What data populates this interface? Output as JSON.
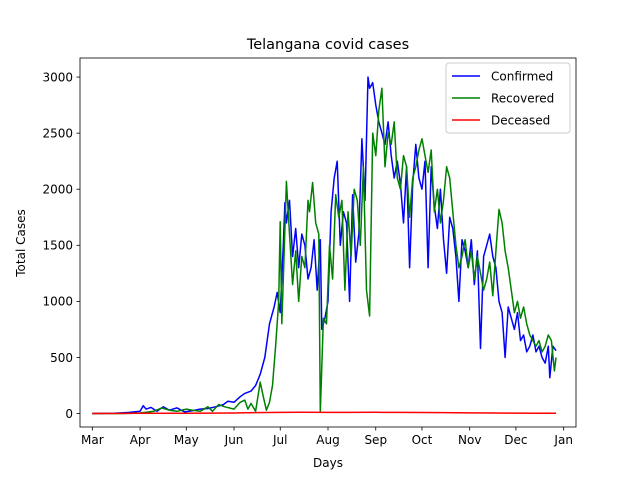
{
  "chart_data": {
    "type": "line",
    "title": "Telangana covid cases",
    "xlabel": "Days",
    "ylabel": "Total Cases",
    "x_ticks": [
      "Mar",
      "Apr",
      "May",
      "Jun",
      "Jul",
      "Aug",
      "Sep",
      "Oct",
      "Nov",
      "Dec",
      "Jan"
    ],
    "x_tick_dates": [
      "2020-03-01",
      "2020-04-01",
      "2020-05-01",
      "2020-06-01",
      "2020-07-01",
      "2020-08-01",
      "2020-09-01",
      "2020-10-01",
      "2020-11-01",
      "2020-12-01",
      "2021-01-01"
    ],
    "x_range": [
      "2020-02-22",
      "2021-01-09"
    ],
    "y_ticks": [
      0,
      500,
      1000,
      1500,
      2000,
      2500,
      3000
    ],
    "ylim": [
      -120,
      3170
    ],
    "grid": false,
    "legend_position": "top-right",
    "series": [
      {
        "name": "Confirmed",
        "color": "#0000ff",
        "points": [
          [
            "2020-03-01",
            0
          ],
          [
            "2020-03-15",
            2
          ],
          [
            "2020-03-25",
            10
          ],
          [
            "2020-04-01",
            20
          ],
          [
            "2020-04-03",
            70
          ],
          [
            "2020-04-05",
            40
          ],
          [
            "2020-04-08",
            55
          ],
          [
            "2020-04-12",
            20
          ],
          [
            "2020-04-16",
            60
          ],
          [
            "2020-04-20",
            30
          ],
          [
            "2020-04-25",
            50
          ],
          [
            "2020-04-30",
            15
          ],
          [
            "2020-05-05",
            25
          ],
          [
            "2020-05-10",
            40
          ],
          [
            "2020-05-15",
            45
          ],
          [
            "2020-05-20",
            60
          ],
          [
            "2020-05-25",
            80
          ],
          [
            "2020-05-28",
            110
          ],
          [
            "2020-06-01",
            100
          ],
          [
            "2020-06-05",
            150
          ],
          [
            "2020-06-08",
            180
          ],
          [
            "2020-06-12",
            200
          ],
          [
            "2020-06-15",
            250
          ],
          [
            "2020-06-18",
            350
          ],
          [
            "2020-06-21",
            500
          ],
          [
            "2020-06-24",
            800
          ],
          [
            "2020-06-27",
            950
          ],
          [
            "2020-06-29",
            1080
          ],
          [
            "2020-07-01",
            900
          ],
          [
            "2020-07-03",
            1500
          ],
          [
            "2020-07-04",
            1880
          ],
          [
            "2020-07-05",
            1700
          ],
          [
            "2020-07-07",
            1900
          ],
          [
            "2020-07-09",
            1400
          ],
          [
            "2020-07-11",
            1650
          ],
          [
            "2020-07-13",
            1300
          ],
          [
            "2020-07-15",
            1600
          ],
          [
            "2020-07-17",
            1500
          ],
          [
            "2020-07-19",
            1200
          ],
          [
            "2020-07-21",
            1300
          ],
          [
            "2020-07-23",
            1550
          ],
          [
            "2020-07-25",
            1100
          ],
          [
            "2020-07-27",
            1550
          ],
          [
            "2020-07-28",
            750
          ],
          [
            "2020-07-30",
            850
          ],
          [
            "2020-08-01",
            1000
          ],
          [
            "2020-08-03",
            1800
          ],
          [
            "2020-08-05",
            2100
          ],
          [
            "2020-08-07",
            2250
          ],
          [
            "2020-08-09",
            1500
          ],
          [
            "2020-08-11",
            1800
          ],
          [
            "2020-08-13",
            1700
          ],
          [
            "2020-08-15",
            1000
          ],
          [
            "2020-08-17",
            1950
          ],
          [
            "2020-08-19",
            1350
          ],
          [
            "2020-08-21",
            1600
          ],
          [
            "2020-08-23",
            2450
          ],
          [
            "2020-08-25",
            1900
          ],
          [
            "2020-08-27",
            3000
          ],
          [
            "2020-08-28",
            2900
          ],
          [
            "2020-08-30",
            2950
          ],
          [
            "2020-09-01",
            2750
          ],
          [
            "2020-09-03",
            2600
          ],
          [
            "2020-09-05",
            2500
          ],
          [
            "2020-09-07",
            2400
          ],
          [
            "2020-09-09",
            2600
          ],
          [
            "2020-09-11",
            2300
          ],
          [
            "2020-09-13",
            2100
          ],
          [
            "2020-09-15",
            2250
          ],
          [
            "2020-09-17",
            2050
          ],
          [
            "2020-09-19",
            1700
          ],
          [
            "2020-09-21",
            2200
          ],
          [
            "2020-09-23",
            1300
          ],
          [
            "2020-09-25",
            2050
          ],
          [
            "2020-09-27",
            2400
          ],
          [
            "2020-09-29",
            2100
          ],
          [
            "2020-10-01",
            2000
          ],
          [
            "2020-10-03",
            2250
          ],
          [
            "2020-10-05",
            1300
          ],
          [
            "2020-10-07",
            2200
          ],
          [
            "2020-10-09",
            1850
          ],
          [
            "2020-10-11",
            1650
          ],
          [
            "2020-10-13",
            2000
          ],
          [
            "2020-10-15",
            1550
          ],
          [
            "2020-10-17",
            1250
          ],
          [
            "2020-10-19",
            1750
          ],
          [
            "2020-10-21",
            1650
          ],
          [
            "2020-10-23",
            1400
          ],
          [
            "2020-10-25",
            1000
          ],
          [
            "2020-10-27",
            1550
          ],
          [
            "2020-10-29",
            1450
          ],
          [
            "2020-10-31",
            1300
          ],
          [
            "2020-11-02",
            1550
          ],
          [
            "2020-11-04",
            1150
          ],
          [
            "2020-11-06",
            1450
          ],
          [
            "2020-11-08",
            580
          ],
          [
            "2020-11-10",
            1400
          ],
          [
            "2020-11-12",
            1500
          ],
          [
            "2020-11-14",
            1600
          ],
          [
            "2020-11-16",
            1400
          ],
          [
            "2020-11-18",
            1300
          ],
          [
            "2020-11-20",
            1000
          ],
          [
            "2020-11-22",
            900
          ],
          [
            "2020-11-24",
            500
          ],
          [
            "2020-11-26",
            950
          ],
          [
            "2020-11-28",
            850
          ],
          [
            "2020-11-30",
            750
          ],
          [
            "2020-12-02",
            900
          ],
          [
            "2020-12-04",
            650
          ],
          [
            "2020-12-06",
            700
          ],
          [
            "2020-12-08",
            550
          ],
          [
            "2020-12-10",
            600
          ],
          [
            "2020-12-12",
            700
          ],
          [
            "2020-12-14",
            550
          ],
          [
            "2020-12-16",
            600
          ],
          [
            "2020-12-18",
            500
          ],
          [
            "2020-12-20",
            450
          ],
          [
            "2020-12-22",
            600
          ],
          [
            "2020-12-23",
            320
          ],
          [
            "2020-12-25",
            600
          ],
          [
            "2020-12-27",
            560
          ]
        ]
      },
      {
        "name": "Recovered",
        "color": "#008000",
        "points": [
          [
            "2020-03-01",
            0
          ],
          [
            "2020-03-20",
            0
          ],
          [
            "2020-04-01",
            5
          ],
          [
            "2020-04-10",
            20
          ],
          [
            "2020-04-15",
            50
          ],
          [
            "2020-04-20",
            30
          ],
          [
            "2020-04-25",
            20
          ],
          [
            "2020-05-01",
            40
          ],
          [
            "2020-05-05",
            30
          ],
          [
            "2020-05-10",
            20
          ],
          [
            "2020-05-15",
            60
          ],
          [
            "2020-05-18",
            20
          ],
          [
            "2020-05-22",
            80
          ],
          [
            "2020-05-26",
            60
          ],
          [
            "2020-06-01",
            40
          ],
          [
            "2020-06-05",
            100
          ],
          [
            "2020-06-08",
            120
          ],
          [
            "2020-06-10",
            40
          ],
          [
            "2020-06-12",
            90
          ],
          [
            "2020-06-15",
            20
          ],
          [
            "2020-06-18",
            280
          ],
          [
            "2020-06-20",
            150
          ],
          [
            "2020-06-22",
            30
          ],
          [
            "2020-06-24",
            100
          ],
          [
            "2020-06-26",
            250
          ],
          [
            "2020-06-28",
            600
          ],
          [
            "2020-06-30",
            1000
          ],
          [
            "2020-07-01",
            1710
          ],
          [
            "2020-07-02",
            800
          ],
          [
            "2020-07-03",
            1200
          ],
          [
            "2020-07-05",
            2070
          ],
          [
            "2020-07-07",
            1600
          ],
          [
            "2020-07-09",
            1150
          ],
          [
            "2020-07-11",
            1450
          ],
          [
            "2020-07-13",
            1000
          ],
          [
            "2020-07-15",
            1400
          ],
          [
            "2020-07-17",
            1300
          ],
          [
            "2020-07-19",
            1900
          ],
          [
            "2020-07-20",
            1800
          ],
          [
            "2020-07-22",
            2060
          ],
          [
            "2020-07-24",
            1700
          ],
          [
            "2020-07-26",
            1600
          ],
          [
            "2020-07-27",
            10
          ],
          [
            "2020-07-29",
            850
          ],
          [
            "2020-07-31",
            800
          ],
          [
            "2020-08-02",
            1500
          ],
          [
            "2020-08-04",
            1200
          ],
          [
            "2020-08-06",
            1950
          ],
          [
            "2020-08-08",
            1750
          ],
          [
            "2020-08-10",
            1900
          ],
          [
            "2020-08-12",
            1100
          ],
          [
            "2020-08-14",
            1800
          ],
          [
            "2020-08-16",
            1400
          ],
          [
            "2020-08-18",
            2000
          ],
          [
            "2020-08-20",
            1900
          ],
          [
            "2020-08-22",
            1500
          ],
          [
            "2020-08-24",
            2200
          ],
          [
            "2020-08-26",
            1100
          ],
          [
            "2020-08-28",
            870
          ],
          [
            "2020-08-30",
            2500
          ],
          [
            "2020-09-01",
            2300
          ],
          [
            "2020-09-03",
            2700
          ],
          [
            "2020-09-05",
            2900
          ],
          [
            "2020-09-07",
            2200
          ],
          [
            "2020-09-09",
            2500
          ],
          [
            "2020-09-11",
            2400
          ],
          [
            "2020-09-13",
            2600
          ],
          [
            "2020-09-15",
            2100
          ],
          [
            "2020-09-17",
            2000
          ],
          [
            "2020-09-19",
            2300
          ],
          [
            "2020-09-21",
            2200
          ],
          [
            "2020-09-23",
            1750
          ],
          [
            "2020-09-25",
            2100
          ],
          [
            "2020-09-27",
            2200
          ],
          [
            "2020-09-29",
            2350
          ],
          [
            "2020-10-01",
            2450
          ],
          [
            "2020-10-03",
            2300
          ],
          [
            "2020-10-05",
            2150
          ],
          [
            "2020-10-07",
            2350
          ],
          [
            "2020-10-09",
            1800
          ],
          [
            "2020-10-11",
            2000
          ],
          [
            "2020-10-13",
            1700
          ],
          [
            "2020-10-15",
            1900
          ],
          [
            "2020-10-17",
            2200
          ],
          [
            "2020-10-19",
            2100
          ],
          [
            "2020-10-21",
            1800
          ],
          [
            "2020-10-23",
            1500
          ],
          [
            "2020-10-25",
            1300
          ],
          [
            "2020-10-27",
            1400
          ],
          [
            "2020-10-29",
            1550
          ],
          [
            "2020-10-31",
            1300
          ],
          [
            "2020-11-02",
            1450
          ],
          [
            "2020-11-04",
            1200
          ],
          [
            "2020-11-06",
            1400
          ],
          [
            "2020-11-08",
            1250
          ],
          [
            "2020-11-10",
            1100
          ],
          [
            "2020-11-12",
            1200
          ],
          [
            "2020-11-14",
            1350
          ],
          [
            "2020-11-16",
            1050
          ],
          [
            "2020-11-18",
            1450
          ],
          [
            "2020-11-20",
            1820
          ],
          [
            "2020-11-22",
            1700
          ],
          [
            "2020-11-24",
            1450
          ],
          [
            "2020-11-26",
            1300
          ],
          [
            "2020-11-28",
            1100
          ],
          [
            "2020-11-30",
            900
          ],
          [
            "2020-12-02",
            1000
          ],
          [
            "2020-12-04",
            850
          ],
          [
            "2020-12-06",
            950
          ],
          [
            "2020-12-08",
            800
          ],
          [
            "2020-12-10",
            700
          ],
          [
            "2020-12-12",
            650
          ],
          [
            "2020-12-14",
            600
          ],
          [
            "2020-12-16",
            650
          ],
          [
            "2020-12-18",
            550
          ],
          [
            "2020-12-20",
            600
          ],
          [
            "2020-12-22",
            700
          ],
          [
            "2020-12-24",
            650
          ],
          [
            "2020-12-26",
            380
          ],
          [
            "2020-12-27",
            500
          ]
        ]
      },
      {
        "name": "Deceased",
        "color": "#ff0000",
        "points": [
          [
            "2020-03-01",
            0
          ],
          [
            "2020-04-01",
            2
          ],
          [
            "2020-05-01",
            3
          ],
          [
            "2020-06-01",
            5
          ],
          [
            "2020-06-15",
            8
          ],
          [
            "2020-07-01",
            10
          ],
          [
            "2020-07-15",
            11
          ],
          [
            "2020-08-01",
            10
          ],
          [
            "2020-08-15",
            10
          ],
          [
            "2020-09-01",
            11
          ],
          [
            "2020-09-15",
            10
          ],
          [
            "2020-10-01",
            9
          ],
          [
            "2020-10-15",
            8
          ],
          [
            "2020-11-01",
            6
          ],
          [
            "2020-11-15",
            5
          ],
          [
            "2020-12-01",
            4
          ],
          [
            "2020-12-15",
            3
          ],
          [
            "2020-12-27",
            3
          ]
        ]
      }
    ]
  }
}
